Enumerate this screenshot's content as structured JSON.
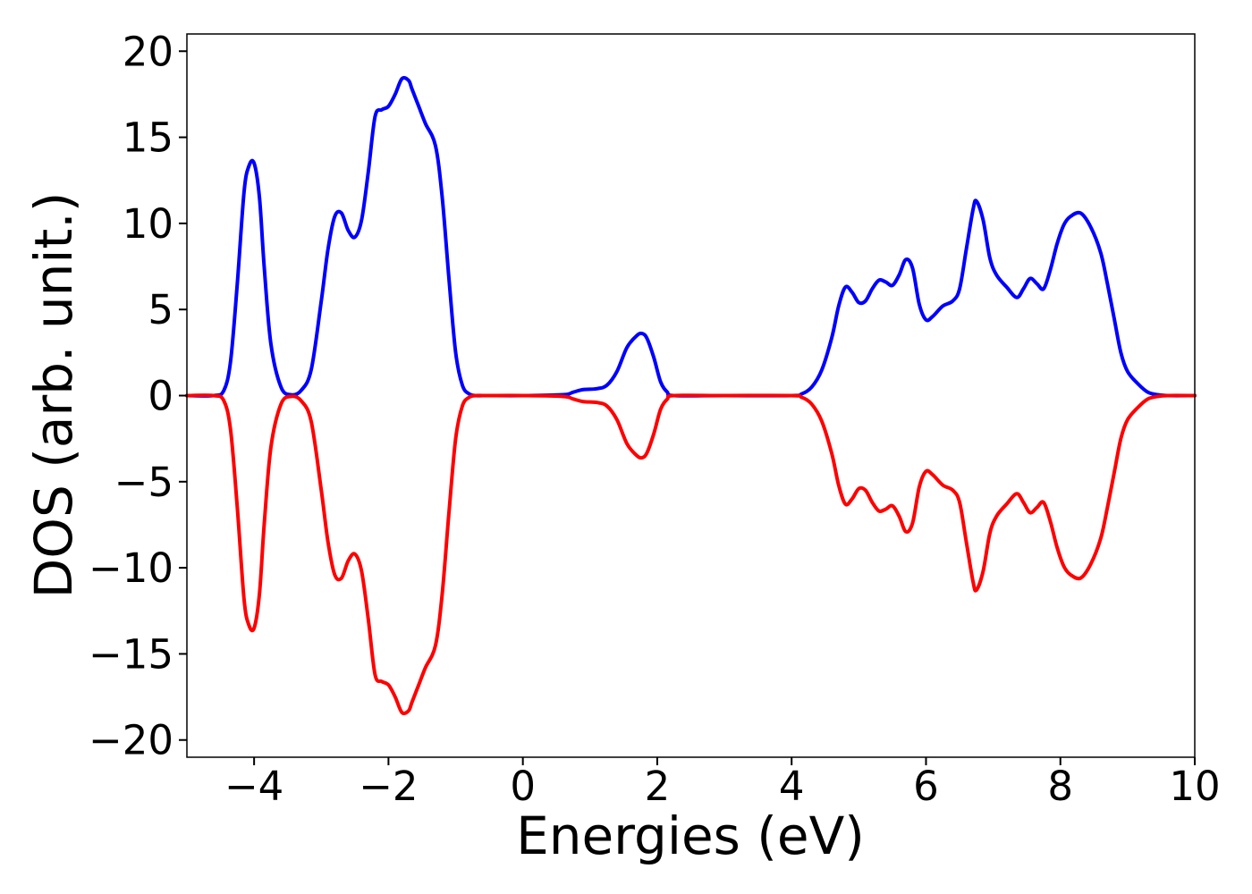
{
  "chart_data": {
    "type": "line",
    "xlabel": "Energies (eV)",
    "ylabel": "DOS (arb. unit.)",
    "xlim": [
      -5,
      10
    ],
    "ylim": [
      -21,
      21
    ],
    "xticks": [
      -4,
      -2,
      0,
      2,
      4,
      6,
      8,
      10
    ],
    "yticks": [
      -20,
      -15,
      -10,
      -5,
      0,
      5,
      10,
      15,
      20
    ],
    "xtick_labels": [
      "−4",
      "−2",
      "0",
      "2",
      "4",
      "6",
      "8",
      "10"
    ],
    "ytick_labels": [
      "−20",
      "−15",
      "−10",
      "−5",
      "0",
      "5",
      "10",
      "15",
      "20"
    ],
    "grid": false,
    "series": [
      {
        "color": "#0000ff",
        "x": [
          -5.0,
          -4.6,
          -4.45,
          -4.35,
          -4.25,
          -4.15,
          -4.08,
          -4.0,
          -3.92,
          -3.85,
          -3.75,
          -3.6,
          -3.45,
          -3.3,
          -3.15,
          -3.0,
          -2.9,
          -2.8,
          -2.7,
          -2.6,
          -2.5,
          -2.4,
          -2.3,
          -2.2,
          -2.1,
          -2.0,
          -1.9,
          -1.8,
          -1.7,
          -1.65,
          -1.55,
          -1.45,
          -1.3,
          -1.2,
          -1.1,
          -1.0,
          -0.9,
          -0.8,
          -0.7,
          -0.6,
          -0.5,
          0.0,
          0.6,
          0.75,
          0.9,
          1.1,
          1.25,
          1.4,
          1.55,
          1.7,
          1.78,
          1.85,
          1.95,
          2.05,
          2.15,
          2.25,
          3.0,
          4.0,
          4.15,
          4.3,
          4.45,
          4.6,
          4.7,
          4.8,
          4.9,
          5.0,
          5.1,
          5.2,
          5.3,
          5.4,
          5.5,
          5.6,
          5.7,
          5.8,
          5.9,
          6.0,
          6.1,
          6.25,
          6.4,
          6.5,
          6.6,
          6.7,
          6.75,
          6.85,
          6.95,
          7.05,
          7.2,
          7.35,
          7.45,
          7.55,
          7.65,
          7.75,
          7.85,
          7.95,
          8.05,
          8.15,
          8.3,
          8.45,
          8.6,
          8.7,
          8.8,
          8.9,
          9.0,
          9.15,
          9.3,
          9.45,
          9.6,
          10.0
        ],
        "y": [
          0.0,
          0.0,
          0.3,
          2.0,
          6.5,
          11.8,
          13.3,
          13.5,
          11.5,
          7.5,
          3.0,
          0.5,
          0.05,
          0.3,
          1.5,
          5.5,
          8.5,
          10.4,
          10.6,
          9.6,
          9.2,
          10.2,
          13.0,
          16.2,
          16.6,
          16.8,
          17.5,
          18.4,
          18.3,
          17.8,
          16.8,
          15.8,
          14.5,
          11.5,
          6.8,
          2.5,
          0.6,
          0.1,
          0.0,
          0.0,
          0.0,
          0.0,
          0.05,
          0.2,
          0.35,
          0.4,
          0.6,
          1.4,
          2.8,
          3.5,
          3.6,
          3.3,
          2.2,
          0.8,
          0.2,
          0.0,
          0.0,
          0.0,
          0.1,
          0.5,
          1.5,
          3.4,
          5.2,
          6.3,
          6.0,
          5.4,
          5.5,
          6.2,
          6.7,
          6.6,
          6.4,
          7.0,
          7.9,
          7.4,
          5.3,
          4.4,
          4.6,
          5.2,
          5.5,
          6.2,
          8.5,
          10.8,
          11.3,
          10.2,
          8.0,
          7.0,
          6.3,
          5.7,
          6.2,
          6.8,
          6.5,
          6.2,
          7.3,
          8.8,
          9.9,
          10.4,
          10.6,
          9.8,
          8.3,
          6.5,
          4.5,
          2.5,
          1.4,
          0.7,
          0.2,
          0.05,
          0.0,
          0.0
        ]
      },
      {
        "color": "#ff0000",
        "x": [
          -5.0,
          -4.6,
          -4.45,
          -4.35,
          -4.25,
          -4.15,
          -4.08,
          -4.0,
          -3.92,
          -3.85,
          -3.75,
          -3.6,
          -3.45,
          -3.3,
          -3.15,
          -3.0,
          -2.9,
          -2.8,
          -2.7,
          -2.6,
          -2.5,
          -2.4,
          -2.3,
          -2.2,
          -2.1,
          -2.0,
          -1.9,
          -1.8,
          -1.7,
          -1.65,
          -1.55,
          -1.45,
          -1.3,
          -1.2,
          -1.1,
          -1.0,
          -0.9,
          -0.8,
          -0.7,
          -0.6,
          -0.5,
          0.0,
          0.6,
          0.75,
          0.9,
          1.1,
          1.25,
          1.4,
          1.55,
          1.7,
          1.78,
          1.85,
          1.95,
          2.05,
          2.15,
          2.25,
          3.0,
          4.0,
          4.15,
          4.3,
          4.45,
          4.6,
          4.7,
          4.8,
          4.9,
          5.0,
          5.1,
          5.2,
          5.3,
          5.4,
          5.5,
          5.6,
          5.7,
          5.8,
          5.9,
          6.0,
          6.1,
          6.25,
          6.4,
          6.5,
          6.6,
          6.7,
          6.75,
          6.85,
          6.95,
          7.05,
          7.2,
          7.35,
          7.45,
          7.55,
          7.65,
          7.75,
          7.85,
          7.95,
          8.05,
          8.15,
          8.3,
          8.45,
          8.6,
          8.7,
          8.8,
          8.9,
          9.0,
          9.15,
          9.3,
          9.45,
          9.6,
          10.0
        ],
        "y": [
          0.0,
          0.0,
          -0.3,
          -2.0,
          -6.5,
          -11.8,
          -13.3,
          -13.5,
          -11.5,
          -7.5,
          -3.0,
          -0.5,
          -0.05,
          -0.3,
          -1.5,
          -5.5,
          -8.5,
          -10.4,
          -10.6,
          -9.6,
          -9.2,
          -10.2,
          -13.0,
          -16.2,
          -16.6,
          -16.8,
          -17.5,
          -18.4,
          -18.3,
          -17.8,
          -16.8,
          -15.8,
          -14.5,
          -11.5,
          -6.8,
          -2.5,
          -0.6,
          -0.1,
          0.0,
          0.0,
          0.0,
          0.0,
          -0.05,
          -0.2,
          -0.35,
          -0.4,
          -0.6,
          -1.4,
          -2.8,
          -3.5,
          -3.6,
          -3.3,
          -2.2,
          -0.8,
          -0.2,
          0.0,
          0.0,
          0.0,
          -0.1,
          -0.5,
          -1.5,
          -3.4,
          -5.2,
          -6.3,
          -6.0,
          -5.4,
          -5.5,
          -6.2,
          -6.7,
          -6.6,
          -6.4,
          -7.0,
          -7.9,
          -7.4,
          -5.3,
          -4.4,
          -4.6,
          -5.2,
          -5.5,
          -6.2,
          -8.5,
          -10.8,
          -11.3,
          -10.2,
          -8.0,
          -7.0,
          -6.3,
          -5.7,
          -6.2,
          -6.8,
          -6.5,
          -6.2,
          -7.3,
          -8.8,
          -9.9,
          -10.4,
          -10.6,
          -9.8,
          -8.3,
          -6.5,
          -4.5,
          -2.5,
          -1.4,
          -0.7,
          -0.2,
          -0.05,
          0.0,
          0.0
        ]
      }
    ]
  }
}
